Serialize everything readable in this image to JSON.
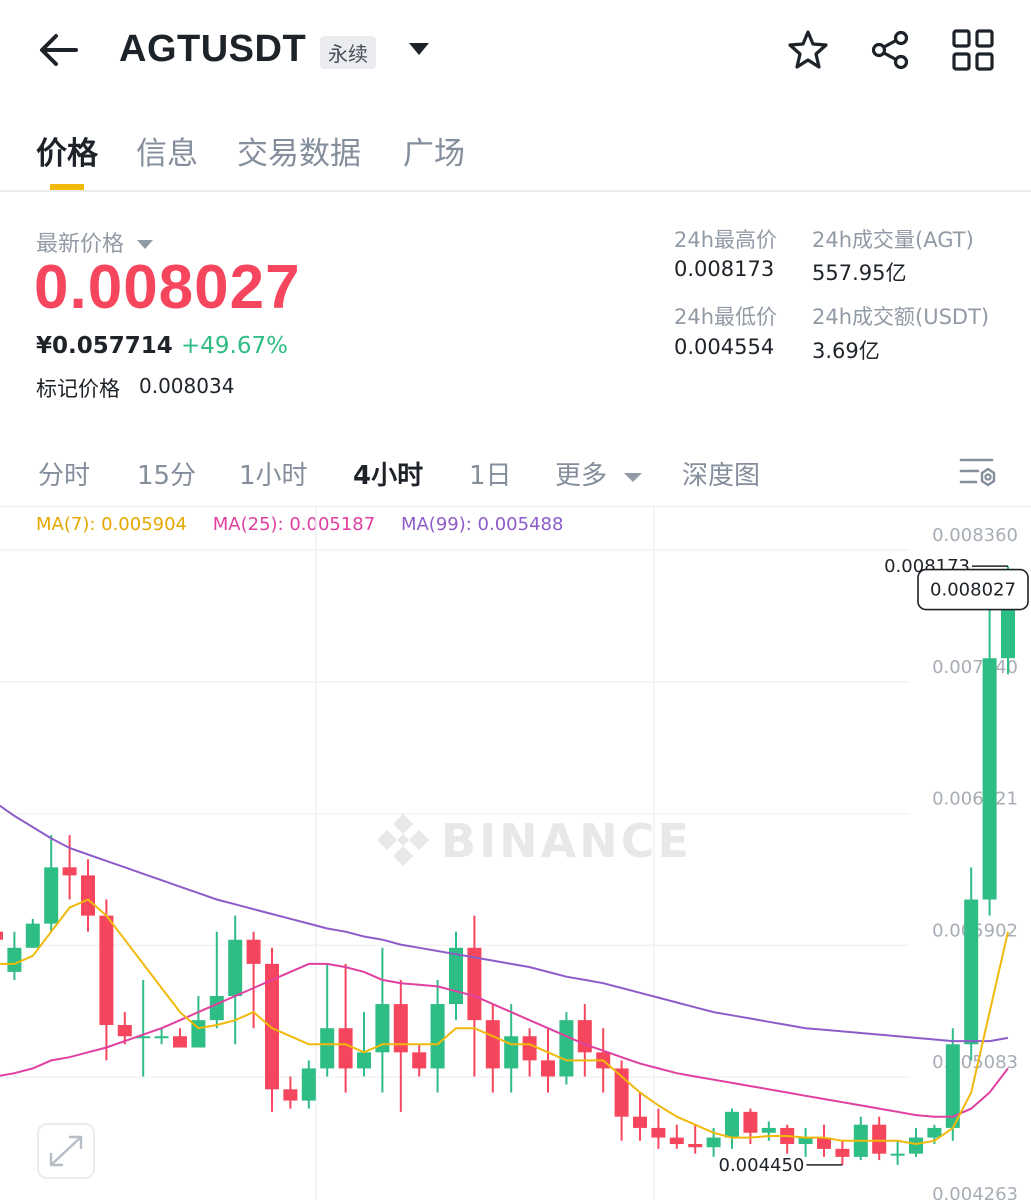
{
  "header": {
    "symbol": "AGTUSDT",
    "contract_badge": "永续",
    "icons": [
      "back-arrow-icon",
      "caret-down-icon",
      "star-icon",
      "share-icon",
      "grid-icon"
    ]
  },
  "tabs": [
    {
      "label": "价格",
      "active": true
    },
    {
      "label": "信息",
      "active": false
    },
    {
      "label": "交易数据",
      "active": false
    },
    {
      "label": "广场",
      "active": false
    }
  ],
  "price": {
    "label": "最新价格",
    "last": "0.008027",
    "cny": "¥0.057714",
    "change": "+49.67%",
    "mark_label": "标记价格",
    "mark_value": "0.008034",
    "colors": {
      "down": "#f6465d",
      "up": "#2ebd85"
    }
  },
  "stats": {
    "high_label": "24h最高价",
    "high_value": "0.008173",
    "vol_base_label": "24h成交量(AGT)",
    "vol_base_value": "557.95亿",
    "low_label": "24h最低价",
    "low_value": "0.004554",
    "vol_quote_label": "24h成交额(USDT)",
    "vol_quote_value": "3.69亿"
  },
  "intervals": [
    {
      "label": "分时",
      "active": false
    },
    {
      "label": "15分",
      "active": false
    },
    {
      "label": "1小时",
      "active": false
    },
    {
      "label": "4小时",
      "active": true
    },
    {
      "label": "1日",
      "active": false
    },
    {
      "label": "更多",
      "active": false
    },
    {
      "label": "深度图",
      "active": false
    }
  ],
  "ma": {
    "ma7": "MA(7): 0.005904",
    "ma25": "MA(25): 0.005187",
    "ma99": "MA(99): 0.005488",
    "colors": {
      "ma7": "#f0b90b",
      "ma25": "#e040a0",
      "ma99": "#8e5cc9"
    }
  },
  "chart_data": {
    "type": "candlestick",
    "interval": "4小时",
    "y_ticks": [
      "0.008360",
      "0.007540",
      "0.006721",
      "0.005902",
      "0.005083",
      "0.004263"
    ],
    "ylim": [
      0.004263,
      0.00836
    ],
    "high_marker": "0.008173",
    "low_marker": "0.004450",
    "current_price_tag": "0.008027",
    "watermark": "BINANCE",
    "candles": [
      [
        0.0059,
        0.00585,
        0.00595,
        0.0057
      ],
      [
        0.00565,
        0.0058,
        0.0059,
        0.0056
      ],
      [
        0.0058,
        0.00595,
        0.00598,
        0.0058
      ],
      [
        0.00595,
        0.0063,
        0.0065,
        0.0059
      ],
      [
        0.0063,
        0.00625,
        0.0065,
        0.0061
      ],
      [
        0.00625,
        0.006,
        0.00635,
        0.0059
      ],
      [
        0.006,
        0.00532,
        0.0061,
        0.0051
      ],
      [
        0.00532,
        0.00525,
        0.0054,
        0.0052
      ],
      [
        0.00525,
        0.00525,
        0.0056,
        0.005
      ],
      [
        0.00525,
        0.00525,
        0.0053,
        0.0052
      ],
      [
        0.00525,
        0.00518,
        0.0053,
        0.0052
      ],
      [
        0.00518,
        0.00535,
        0.0055,
        0.0052
      ],
      [
        0.00535,
        0.0055,
        0.0059,
        0.0053
      ],
      [
        0.0055,
        0.00585,
        0.006,
        0.0052
      ],
      [
        0.00585,
        0.0057,
        0.0059,
        0.0053
      ],
      [
        0.0057,
        0.00492,
        0.0058,
        0.00478
      ],
      [
        0.00492,
        0.00485,
        0.005,
        0.0048
      ],
      [
        0.00485,
        0.00505,
        0.0051,
        0.0048
      ],
      [
        0.00505,
        0.0053,
        0.0057,
        0.005
      ],
      [
        0.0053,
        0.00505,
        0.0057,
        0.0049
      ],
      [
        0.00505,
        0.00515,
        0.0054,
        0.005
      ],
      [
        0.00515,
        0.00545,
        0.0058,
        0.0049
      ],
      [
        0.00545,
        0.00515,
        0.0056,
        0.00478
      ],
      [
        0.00515,
        0.00505,
        0.0052,
        0.005
      ],
      [
        0.00505,
        0.00545,
        0.0056,
        0.0049
      ],
      [
        0.00545,
        0.0058,
        0.0059,
        0.00535
      ],
      [
        0.0058,
        0.00535,
        0.006,
        0.005
      ],
      [
        0.00535,
        0.00505,
        0.00545,
        0.0049
      ],
      [
        0.00505,
        0.00525,
        0.00545,
        0.0049
      ],
      [
        0.00525,
        0.0051,
        0.0053,
        0.005
      ],
      [
        0.0051,
        0.005,
        0.0053,
        0.0049
      ],
      [
        0.005,
        0.00535,
        0.0054,
        0.00495
      ],
      [
        0.00535,
        0.00515,
        0.00545,
        0.005
      ],
      [
        0.00515,
        0.00505,
        0.0053,
        0.0049
      ],
      [
        0.00505,
        0.00475,
        0.0051,
        0.0046
      ],
      [
        0.00475,
        0.00468,
        0.0049,
        0.0046
      ],
      [
        0.00468,
        0.00462,
        0.0048,
        0.00455
      ],
      [
        0.00462,
        0.00458,
        0.0047,
        0.00455
      ],
      [
        0.00458,
        0.00456,
        0.0047,
        0.00452
      ],
      [
        0.00456,
        0.00462,
        0.00468,
        0.0045
      ],
      [
        0.00462,
        0.00478,
        0.0048,
        0.00455
      ],
      [
        0.00478,
        0.00465,
        0.0048,
        0.00458
      ],
      [
        0.00465,
        0.00468,
        0.00472,
        0.0046
      ],
      [
        0.00468,
        0.00458,
        0.0047,
        0.00452
      ],
      [
        0.00458,
        0.00462,
        0.00468,
        0.0045
      ],
      [
        0.00462,
        0.00455,
        0.0047,
        0.0045
      ],
      [
        0.00455,
        0.0045,
        0.0046,
        0.00445
      ],
      [
        0.0045,
        0.0047,
        0.00475,
        0.00448
      ],
      [
        0.0047,
        0.00452,
        0.00475,
        0.00448
      ],
      [
        0.00452,
        0.00452,
        0.0046,
        0.00445
      ],
      [
        0.00452,
        0.00462,
        0.00468,
        0.0045
      ],
      [
        0.00462,
        0.00468,
        0.0047,
        0.00458
      ],
      [
        0.00468,
        0.0052,
        0.0053,
        0.0046
      ],
      [
        0.0052,
        0.0061,
        0.0063,
        0.0051
      ],
      [
        0.0061,
        0.0076,
        0.008,
        0.006
      ],
      [
        0.0076,
        0.008027,
        0.008173,
        0.0075
      ]
    ],
    "ma7": [
      0.0057,
      0.0057,
      0.00575,
      0.0059,
      0.00605,
      0.0061,
      0.006,
      0.00585,
      0.0057,
      0.00555,
      0.0054,
      0.0053,
      0.00532,
      0.00535,
      0.0054,
      0.0053,
      0.00525,
      0.0052,
      0.0052,
      0.0052,
      0.00515,
      0.0052,
      0.0052,
      0.0052,
      0.0052,
      0.0053,
      0.0053,
      0.00525,
      0.0052,
      0.0052,
      0.00515,
      0.0051,
      0.0051,
      0.0051,
      0.005,
      0.0049,
      0.00482,
      0.00475,
      0.0047,
      0.00465,
      0.00462,
      0.00462,
      0.00463,
      0.00463,
      0.00462,
      0.00462,
      0.0046,
      0.0046,
      0.0046,
      0.0046,
      0.00458,
      0.0046,
      0.00468,
      0.0049,
      0.0054,
      0.0059
    ],
    "ma25": [
      0.005,
      0.00502,
      0.00505,
      0.0051,
      0.00512,
      0.00515,
      0.00518,
      0.00522,
      0.00526,
      0.0053,
      0.00535,
      0.0054,
      0.00545,
      0.0055,
      0.00555,
      0.0056,
      0.00565,
      0.0057,
      0.0057,
      0.00568,
      0.00565,
      0.0056,
      0.00558,
      0.00557,
      0.00556,
      0.00553,
      0.0055,
      0.00545,
      0.0054,
      0.00535,
      0.0053,
      0.00525,
      0.0052,
      0.00516,
      0.00512,
      0.00508,
      0.00505,
      0.00502,
      0.005,
      0.00498,
      0.00496,
      0.00494,
      0.00492,
      0.0049,
      0.00488,
      0.00486,
      0.00484,
      0.00482,
      0.0048,
      0.00478,
      0.00476,
      0.00475,
      0.00475,
      0.0048,
      0.0049,
      0.00505
    ],
    "ma99": [
      0.0067,
      0.00662,
      0.00655,
      0.00648,
      0.00642,
      0.00638,
      0.00634,
      0.0063,
      0.00626,
      0.00622,
      0.00618,
      0.00614,
      0.0061,
      0.00607,
      0.00604,
      0.00601,
      0.00598,
      0.00595,
      0.00592,
      0.0059,
      0.00587,
      0.00585,
      0.00582,
      0.0058,
      0.00578,
      0.00576,
      0.00574,
      0.00572,
      0.0057,
      0.00568,
      0.00565,
      0.00562,
      0.0056,
      0.00558,
      0.00555,
      0.00552,
      0.00549,
      0.00546,
      0.00543,
      0.0054,
      0.00538,
      0.00536,
      0.00534,
      0.00532,
      0.0053,
      0.00529,
      0.00528,
      0.00527,
      0.00526,
      0.00525,
      0.00524,
      0.00523,
      0.00522,
      0.00522,
      0.00522,
      0.00524
    ]
  }
}
